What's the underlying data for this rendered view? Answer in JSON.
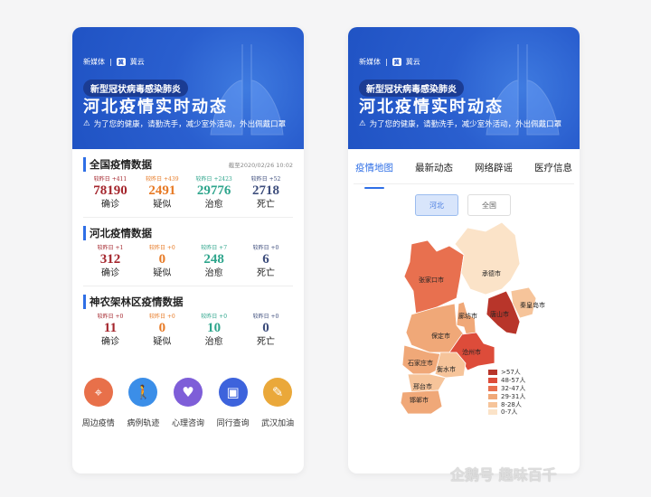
{
  "left": {
    "brand": {
      "logo": "新媒体",
      "partner": "冀云"
    },
    "banner": {
      "pill": "新型冠状病毒感染肺炎",
      "title": "河北疫情实时动态",
      "warning": "为了您的健康，请勤洗手，减少室外活动，外出佩戴口罩"
    },
    "sections": [
      {
        "title": "全国疫情数据",
        "timestamp": "截至2020/02/26 10:02",
        "stats": [
          {
            "delta": "较昨日 +411",
            "value": "78190",
            "label": "确诊"
          },
          {
            "delta": "较昨日 +439",
            "value": "2491",
            "label": "疑似"
          },
          {
            "delta": "较昨日 +2423",
            "value": "29776",
            "label": "治愈"
          },
          {
            "delta": "较昨日 +52",
            "value": "2718",
            "label": "死亡"
          }
        ]
      },
      {
        "title": "河北疫情数据",
        "stats": [
          {
            "delta": "较昨日 +1",
            "value": "312",
            "label": "确诊"
          },
          {
            "delta": "较昨日 +0",
            "value": "0",
            "label": "疑似"
          },
          {
            "delta": "较昨日 +7",
            "value": "248",
            "label": "治愈"
          },
          {
            "delta": "较昨日 +0",
            "value": "6",
            "label": "死亡"
          }
        ]
      },
      {
        "title": "神农架林区疫情数据",
        "stats": [
          {
            "delta": "较昨日 +0",
            "value": "11",
            "label": "确诊"
          },
          {
            "delta": "较昨日 +0",
            "value": "0",
            "label": "疑似"
          },
          {
            "delta": "较昨日 +0",
            "value": "10",
            "label": "治愈"
          },
          {
            "delta": "较昨日 +0",
            "value": "0",
            "label": "死亡"
          }
        ]
      }
    ],
    "shortcuts": [
      {
        "label": "周边疫情",
        "icon": "map-pin-icon",
        "color": "#e8704a"
      },
      {
        "label": "病例轨迹",
        "icon": "walking-person-icon",
        "color": "#3b8ee8"
      },
      {
        "label": "心理咨询",
        "icon": "heart-icon",
        "color": "#7e5ed8"
      },
      {
        "label": "同行查询",
        "icon": "bus-icon",
        "color": "#3d63dc"
      },
      {
        "label": "武汉加油",
        "icon": "user-edit-icon",
        "color": "#eaa83a"
      }
    ]
  },
  "right": {
    "tabs": [
      "疫情地图",
      "最新动态",
      "网络辟谣",
      "医疗信息"
    ],
    "active_tab": 0,
    "toggle": [
      "河北",
      "全国"
    ],
    "map": {
      "regions": [
        {
          "name": "张家口市",
          "level": 2
        },
        {
          "name": "承德市",
          "level": 5
        },
        {
          "name": "唐山市",
          "level": 0
        },
        {
          "name": "秦皇岛市",
          "level": 4
        },
        {
          "name": "廊坊市",
          "level": 3
        },
        {
          "name": "保定市",
          "level": 3
        },
        {
          "name": "沧州市",
          "level": 1
        },
        {
          "name": "石家庄市",
          "level": 3
        },
        {
          "name": "衡水市",
          "level": 4
        },
        {
          "name": "邢台市",
          "level": 4
        },
        {
          "name": "邯郸市",
          "level": 3
        }
      ],
      "legend": [
        {
          "label": ">57人",
          "color": "#b8352a"
        },
        {
          "label": "48-57人",
          "color": "#dd4c3a"
        },
        {
          "label": "32-47人",
          "color": "#e8704f"
        },
        {
          "label": "29-31人",
          "color": "#f0a878"
        },
        {
          "label": "8-28人",
          "color": "#f6c49a"
        },
        {
          "label": "0-7人",
          "color": "#fbe3c8"
        }
      ]
    }
  },
  "watermark": "企鹅号 趣味百千"
}
